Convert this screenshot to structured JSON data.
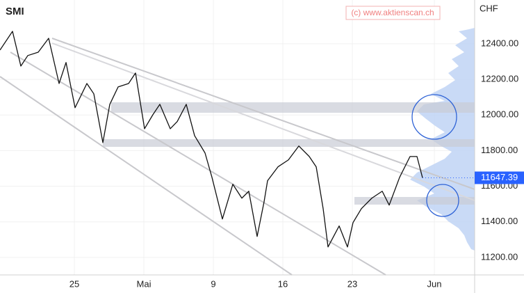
{
  "chart_data": {
    "type": "line",
    "title": "SMI",
    "watermark": "(c) www.aktienscan.ch",
    "currency": "CHF",
    "color": "#111111",
    "x": [
      -0.35,
      0.55,
      1.15,
      1.65,
      2.4,
      3.15,
      3.9,
      4.4,
      5.05,
      5.9,
      6.4,
      7.05,
      7.55,
      8.15,
      8.9,
      9.4,
      10.05,
      10.65,
      11.15,
      11.9,
      12.4,
      13.05,
      13.65,
      14.4,
      14.9,
      15.65,
      16.4,
      17.05,
      17.55,
      18.15,
      18.65,
      18.9,
      19.65,
      20.4,
      21.15,
      21.9,
      22.4,
      22.9,
      23.25,
      24.05,
      24.65,
      25.05,
      25.65,
      26.4,
      27.15,
      27.65,
      28.4,
      29.15,
      29.65,
      30.05
    ],
    "values": [
      12365,
      12470,
      12275,
      12334,
      12353,
      12431,
      12177,
      12295,
      12041,
      12177,
      12119,
      11845,
      12060,
      12158,
      12177,
      12236,
      11923,
      12002,
      12060,
      11923,
      11963,
      12060,
      11884,
      11787,
      11650,
      11416,
      11611,
      11533,
      11572,
      11318,
      11513,
      11631,
      11709,
      11748,
      11826,
      11767,
      11709,
      11474,
      11259,
      11377,
      11259,
      11396,
      11474,
      11533,
      11572,
      11494,
      11650,
      11767,
      11767,
      11647.39
    ],
    "last_price": 11647.39,
    "last_price_color": "#2962ff",
    "xlim": [
      -0.35,
      33.8
    ],
    "xticks": [
      {
        "value": 5,
        "label": "25"
      },
      {
        "value": 10,
        "label": "Mai"
      },
      {
        "value": 15,
        "label": "9"
      },
      {
        "value": 20,
        "label": "16"
      },
      {
        "value": 25,
        "label": "23"
      },
      {
        "value": 30.9,
        "label": "Jun"
      }
    ],
    "ylim": [
      11102,
      12646
    ],
    "yticks": [
      {
        "value": 11200,
        "label": "11200.00"
      },
      {
        "value": 11400,
        "label": "11400.00"
      },
      {
        "value": 11600,
        "label": "11600.00"
      },
      {
        "value": 11800,
        "label": "11800.00"
      },
      {
        "value": 12000,
        "label": "12000.00"
      },
      {
        "value": 12200,
        "label": "12200.00"
      },
      {
        "value": 12400,
        "label": "12400.00"
      }
    ],
    "grid": true
  }
}
